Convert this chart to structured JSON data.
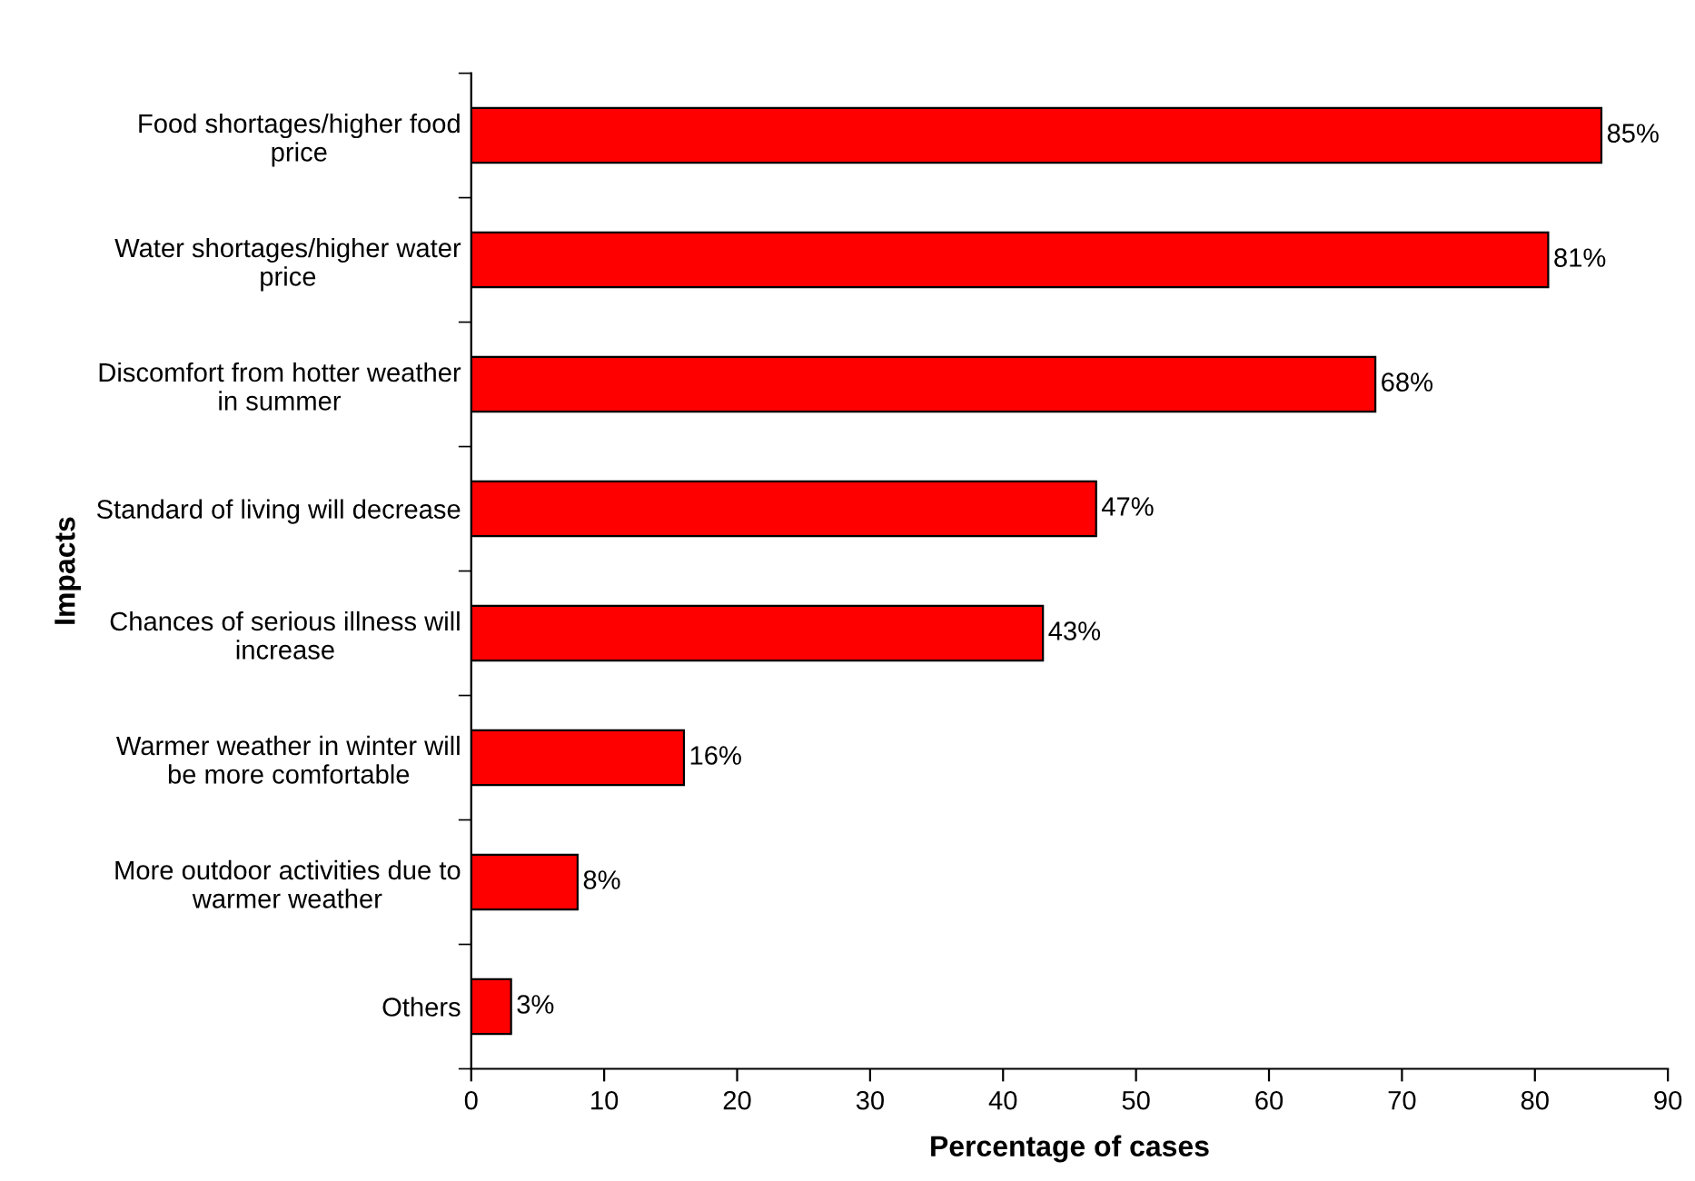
{
  "chart_data": {
    "type": "bar",
    "orientation": "horizontal",
    "categories": [
      "Food shortages/higher food\nprice",
      "Water shortages/higher water\nprice",
      "Discomfort from hotter weather\nin summer",
      "Standard of living will decrease",
      "Chances of serious illness will\nincrease",
      "Warmer weather in winter will\nbe more comfortable",
      "More outdoor activities due to\nwarmer weather",
      "Others"
    ],
    "values": [
      85,
      81,
      68,
      47,
      43,
      16,
      8,
      3
    ],
    "value_labels": [
      "85%",
      "81%",
      "68%",
      "47%",
      "43%",
      "16%",
      "8%",
      "3%"
    ],
    "color": "#ff0000",
    "xlabel": "Percentage of cases",
    "ylabel": "Impacts",
    "xlim": [
      0,
      90
    ],
    "xticks": [
      0,
      10,
      20,
      30,
      40,
      50,
      60,
      70,
      80,
      90
    ],
    "grid": false
  }
}
